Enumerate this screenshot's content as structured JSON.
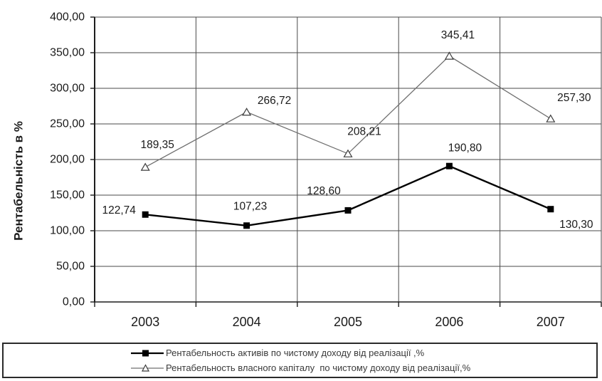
{
  "chart_data": {
    "type": "line",
    "categories": [
      "2003",
      "2004",
      "2005",
      "2006",
      "2007"
    ],
    "series": [
      {
        "name": "Рентабельность активів по чистому доходу від реалізації ,%",
        "marker": "filled-square",
        "line_color": "#000000",
        "marker_color": "#000000",
        "line_width": 2.4,
        "values": [
          122.74,
          107.23,
          128.6,
          190.8,
          130.3
        ],
        "point_labels": [
          "122,74",
          "107,23",
          "128,60",
          "190,80",
          "130,30"
        ],
        "label_offsets": [
          [
            -37,
            -6
          ],
          [
            5,
            -27
          ],
          [
            -34,
            -27
          ],
          [
            22,
            -25
          ],
          [
            36,
            22
          ]
        ]
      },
      {
        "name": "Рентабельность власного капіталу  по чистому доходу від реалізації,%",
        "marker": "open-triangle",
        "line_color": "#6f6f6f",
        "marker_color": "#3d3d3d",
        "line_width": 1.3,
        "values": [
          189.35,
          266.72,
          208.21,
          345.41,
          257.3
        ],
        "point_labels": [
          "189,35",
          "266,72",
          "208,21",
          "345,41",
          "257,30"
        ],
        "label_offsets": [
          [
            17,
            -31
          ],
          [
            39,
            -16
          ],
          [
            23,
            -31
          ],
          [
            12,
            -29
          ],
          [
            33,
            -29
          ]
        ]
      }
    ],
    "title": "",
    "xlabel": "",
    "ylabel": "Рентабельність  в  %",
    "ylim": [
      0,
      400
    ],
    "ytick_step": 50,
    "ytick_labels": [
      "0,00",
      "50,00",
      "100,00",
      "150,00",
      "200,00",
      "250,00",
      "300,00",
      "350,00",
      "400,00"
    ],
    "grid": true,
    "legend_position": "bottom",
    "colors": {
      "grid": "#4a4a4a",
      "axis": "#1d1d1d",
      "text": "#1a1a1a",
      "background": "#ffffff"
    }
  },
  "legend": {
    "items": [
      {
        "label": "Рентабельность активів по чистому доходу від реалізації ,%"
      },
      {
        "label": "Рентабельность власного капіталу  по чистому доходу від реалізації,%"
      }
    ]
  }
}
